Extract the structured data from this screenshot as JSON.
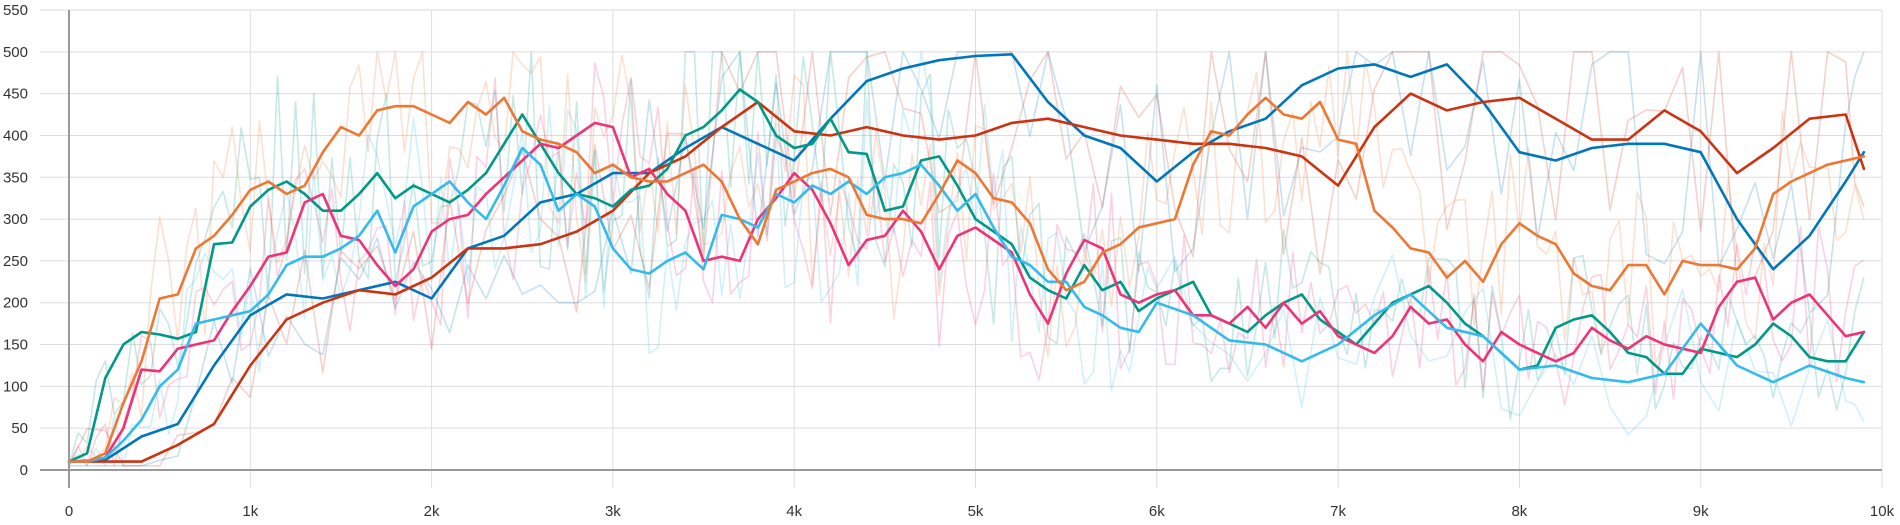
{
  "chart_data": {
    "type": "line",
    "title": "",
    "xlabel": "",
    "ylabel": "",
    "xlim": [
      0,
      10000
    ],
    "ylim": [
      0,
      550
    ],
    "grid": true,
    "x_ticks": [
      {
        "value": 0,
        "label": "0"
      },
      {
        "value": 1000,
        "label": "1k"
      },
      {
        "value": 2000,
        "label": "2k"
      },
      {
        "value": 3000,
        "label": "3k"
      },
      {
        "value": 4000,
        "label": "4k"
      },
      {
        "value": 5000,
        "label": "5k"
      },
      {
        "value": 6000,
        "label": "6k"
      },
      {
        "value": 7000,
        "label": "7k"
      },
      {
        "value": 8000,
        "label": "8k"
      },
      {
        "value": 9000,
        "label": "9k"
      },
      {
        "value": 10000,
        "label": "10k"
      }
    ],
    "y_ticks": [
      {
        "value": 0,
        "label": "0"
      },
      {
        "value": 50,
        "label": "50"
      },
      {
        "value": 100,
        "label": "100"
      },
      {
        "value": 150,
        "label": "150"
      },
      {
        "value": 200,
        "label": "200"
      },
      {
        "value": 250,
        "label": "250"
      },
      {
        "value": 300,
        "label": "300"
      },
      {
        "value": 350,
        "label": "350"
      },
      {
        "value": 400,
        "label": "400"
      },
      {
        "value": 450,
        "label": "450"
      },
      {
        "value": 500,
        "label": "500"
      },
      {
        "value": 550,
        "label": "550"
      }
    ],
    "series": [
      {
        "color": "#0077bb",
        "x": [
          0,
          200,
          400,
          600,
          800,
          1000,
          1200,
          1400,
          1600,
          1800,
          2000,
          2200,
          2400,
          2600,
          2800,
          3000,
          3200,
          3400,
          3600,
          3800,
          4000,
          4200,
          4400,
          4600,
          4800,
          5000,
          5200,
          5400,
          5600,
          5800,
          6000,
          6200,
          6400,
          6600,
          6800,
          7000,
          7200,
          7400,
          7600,
          7800,
          8000,
          8200,
          8400,
          8600,
          8800,
          9000,
          9200,
          9400,
          9600,
          9800,
          9900
        ],
        "y": [
          10,
          12,
          40,
          55,
          125,
          185,
          210,
          205,
          215,
          225,
          205,
          265,
          280,
          320,
          330,
          355,
          355,
          385,
          410,
          390,
          370,
          420,
          465,
          480,
          490,
          495,
          497,
          440,
          400,
          385,
          345,
          380,
          405,
          420,
          460,
          480,
          485,
          470,
          485,
          440,
          380,
          370,
          385,
          390,
          390,
          380,
          300,
          240,
          280,
          345,
          380
        ]
      },
      {
        "color": "#cc3311",
        "x": [
          0,
          200,
          400,
          600,
          800,
          1000,
          1200,
          1400,
          1600,
          1800,
          2000,
          2200,
          2400,
          2600,
          2800,
          3000,
          3200,
          3400,
          3600,
          3800,
          4000,
          4200,
          4400,
          4600,
          4800,
          5000,
          5200,
          5400,
          5600,
          5800,
          6000,
          6200,
          6400,
          6600,
          6800,
          7000,
          7200,
          7400,
          7600,
          7800,
          8000,
          8200,
          8400,
          8600,
          8800,
          9000,
          9200,
          9400,
          9600,
          9800,
          9900
        ],
        "y": [
          10,
          10,
          10,
          30,
          55,
          125,
          180,
          200,
          215,
          210,
          230,
          265,
          265,
          270,
          285,
          310,
          355,
          375,
          410,
          440,
          405,
          400,
          410,
          400,
          395,
          400,
          415,
          420,
          410,
          400,
          395,
          390,
          390,
          385,
          375,
          340,
          410,
          450,
          430,
          440,
          445,
          420,
          395,
          395,
          430,
          405,
          355,
          385,
          420,
          425,
          360
        ]
      },
      {
        "color": "#009988",
        "x": [
          0,
          100,
          200,
          300,
          400,
          500,
          600,
          700,
          800,
          900,
          1000,
          1100,
          1200,
          1300,
          1400,
          1500,
          1600,
          1700,
          1800,
          1900,
          2000,
          2100,
          2200,
          2300,
          2400,
          2500,
          2600,
          2700,
          2800,
          2900,
          3000,
          3100,
          3200,
          3300,
          3400,
          3500,
          3600,
          3700,
          3800,
          3900,
          4000,
          4100,
          4200,
          4300,
          4400,
          4500,
          4600,
          4700,
          4800,
          4900,
          5000,
          5100,
          5200,
          5300,
          5400,
          5500,
          5600,
          5700,
          5800,
          5900,
          6000,
          6100,
          6200,
          6300,
          6400,
          6500,
          6600,
          6700,
          6800,
          6900,
          7000,
          7100,
          7200,
          7300,
          7400,
          7500,
          7600,
          7700,
          7800,
          7900,
          8000,
          8100,
          8200,
          8300,
          8400,
          8500,
          8600,
          8700,
          8800,
          8900,
          9000,
          9100,
          9200,
          9300,
          9400,
          9500,
          9600,
          9700,
          9800,
          9900
        ],
        "y": [
          10,
          20,
          110,
          150,
          165,
          162,
          157,
          165,
          270,
          272,
          315,
          335,
          345,
          330,
          310,
          310,
          330,
          355,
          325,
          340,
          330,
          320,
          335,
          355,
          390,
          425,
          390,
          355,
          330,
          325,
          315,
          335,
          340,
          360,
          400,
          410,
          430,
          455,
          440,
          400,
          385,
          390,
          420,
          380,
          378,
          310,
          315,
          370,
          375,
          340,
          300,
          285,
          270,
          230,
          215,
          205,
          245,
          215,
          225,
          190,
          205,
          215,
          225,
          185,
          175,
          165,
          185,
          200,
          210,
          180,
          165,
          150,
          175,
          200,
          210,
          220,
          200,
          175,
          160,
          140,
          120,
          125,
          170,
          180,
          185,
          165,
          140,
          135,
          115,
          115,
          145,
          140,
          135,
          150,
          175,
          160,
          135,
          130,
          130,
          165
        ]
      },
      {
        "color": "#ee3377",
        "x": [
          0,
          100,
          200,
          300,
          400,
          500,
          600,
          700,
          800,
          900,
          1000,
          1100,
          1200,
          1300,
          1400,
          1500,
          1600,
          1700,
          1800,
          1900,
          2000,
          2100,
          2200,
          2300,
          2400,
          2500,
          2600,
          2700,
          2800,
          2900,
          3000,
          3100,
          3200,
          3300,
          3400,
          3500,
          3600,
          3700,
          3800,
          3900,
          4000,
          4100,
          4200,
          4300,
          4400,
          4500,
          4600,
          4700,
          4800,
          4900,
          5000,
          5100,
          5200,
          5300,
          5400,
          5500,
          5600,
          5700,
          5800,
          5900,
          6000,
          6100,
          6200,
          6300,
          6400,
          6500,
          6600,
          6700,
          6800,
          6900,
          7000,
          7100,
          7200,
          7300,
          7400,
          7500,
          7600,
          7700,
          7800,
          7900,
          8000,
          8100,
          8200,
          8300,
          8400,
          8500,
          8600,
          8700,
          8800,
          8900,
          9000,
          9100,
          9200,
          9300,
          9400,
          9500,
          9600,
          9700,
          9800,
          9900
        ],
        "y": [
          10,
          10,
          15,
          50,
          120,
          118,
          145,
          150,
          155,
          190,
          220,
          255,
          260,
          320,
          330,
          280,
          275,
          245,
          220,
          240,
          285,
          300,
          305,
          330,
          350,
          370,
          390,
          385,
          400,
          415,
          410,
          350,
          360,
          330,
          310,
          250,
          255,
          250,
          300,
          325,
          355,
          335,
          295,
          245,
          275,
          280,
          310,
          285,
          240,
          280,
          290,
          275,
          260,
          210,
          175,
          235,
          275,
          265,
          210,
          200,
          210,
          215,
          185,
          185,
          175,
          195,
          170,
          200,
          175,
          190,
          160,
          150,
          140,
          160,
          195,
          175,
          180,
          150,
          130,
          165,
          150,
          140,
          130,
          140,
          170,
          155,
          145,
          160,
          150,
          145,
          140,
          195,
          225,
          230,
          180,
          200,
          210,
          185,
          160,
          165
        ]
      },
      {
        "color": "#33bbee",
        "x": [
          0,
          100,
          200,
          300,
          400,
          500,
          600,
          700,
          800,
          900,
          1000,
          1100,
          1200,
          1300,
          1400,
          1500,
          1600,
          1700,
          1800,
          1900,
          2000,
          2100,
          2200,
          2300,
          2400,
          2500,
          2600,
          2700,
          2800,
          2900,
          3000,
          3100,
          3200,
          3300,
          3400,
          3500,
          3600,
          3700,
          3800,
          3900,
          4000,
          4100,
          4200,
          4300,
          4400,
          4500,
          4600,
          4700,
          4800,
          4900,
          5000,
          5100,
          5200,
          5300,
          5400,
          5500,
          5600,
          5700,
          5800,
          5900,
          6000,
          6200,
          6400,
          6600,
          6800,
          7000,
          7200,
          7400,
          7600,
          7800,
          8000,
          8200,
          8400,
          8600,
          8800,
          9000,
          9200,
          9400,
          9600,
          9800,
          9900
        ],
        "y": [
          10,
          10,
          15,
          35,
          60,
          100,
          120,
          175,
          180,
          185,
          190,
          210,
          245,
          255,
          255,
          265,
          280,
          310,
          260,
          315,
          330,
          345,
          320,
          300,
          340,
          385,
          365,
          310,
          330,
          315,
          265,
          240,
          235,
          250,
          260,
          240,
          305,
          300,
          290,
          330,
          320,
          340,
          330,
          345,
          330,
          350,
          355,
          365,
          340,
          310,
          330,
          290,
          255,
          245,
          225,
          225,
          195,
          185,
          170,
          165,
          200,
          185,
          155,
          150,
          130,
          150,
          185,
          210,
          170,
          160,
          120,
          125,
          110,
          105,
          115,
          175,
          125,
          105,
          125,
          110,
          105
        ]
      },
      {
        "color": "#ee7733",
        "x": [
          0,
          100,
          200,
          300,
          400,
          500,
          600,
          700,
          800,
          900,
          1000,
          1100,
          1200,
          1300,
          1400,
          1500,
          1600,
          1700,
          1800,
          1900,
          2000,
          2100,
          2200,
          2300,
          2400,
          2500,
          2600,
          2700,
          2800,
          2900,
          3000,
          3100,
          3200,
          3300,
          3400,
          3500,
          3600,
          3700,
          3800,
          3900,
          4000,
          4100,
          4200,
          4300,
          4400,
          4500,
          4600,
          4700,
          4800,
          4900,
          5000,
          5100,
          5200,
          5300,
          5400,
          5500,
          5600,
          5700,
          5800,
          5900,
          6000,
          6100,
          6200,
          6300,
          6400,
          6500,
          6600,
          6700,
          6800,
          6900,
          7000,
          7100,
          7200,
          7300,
          7400,
          7500,
          7600,
          7700,
          7800,
          7900,
          8000,
          8100,
          8200,
          8300,
          8400,
          8500,
          8600,
          8700,
          8800,
          8900,
          9000,
          9100,
          9200,
          9300,
          9400,
          9500,
          9600,
          9700,
          9800,
          9900
        ],
        "y": [
          10,
          10,
          20,
          80,
          130,
          205,
          210,
          265,
          280,
          305,
          335,
          345,
          330,
          340,
          380,
          410,
          400,
          430,
          435,
          435,
          425,
          415,
          440,
          425,
          445,
          405,
          395,
          390,
          380,
          355,
          365,
          350,
          345,
          345,
          355,
          365,
          345,
          300,
          270,
          335,
          345,
          355,
          360,
          350,
          305,
          300,
          300,
          295,
          330,
          370,
          355,
          325,
          320,
          295,
          240,
          215,
          225,
          260,
          270,
          290,
          295,
          300,
          365,
          405,
          400,
          425,
          445,
          425,
          420,
          440,
          395,
          390,
          310,
          290,
          265,
          260,
          230,
          250,
          225,
          270,
          295,
          280,
          270,
          235,
          220,
          215,
          245,
          245,
          210,
          250,
          245,
          245,
          240,
          265,
          330,
          345,
          355,
          365,
          370,
          375
        ]
      }
    ]
  }
}
